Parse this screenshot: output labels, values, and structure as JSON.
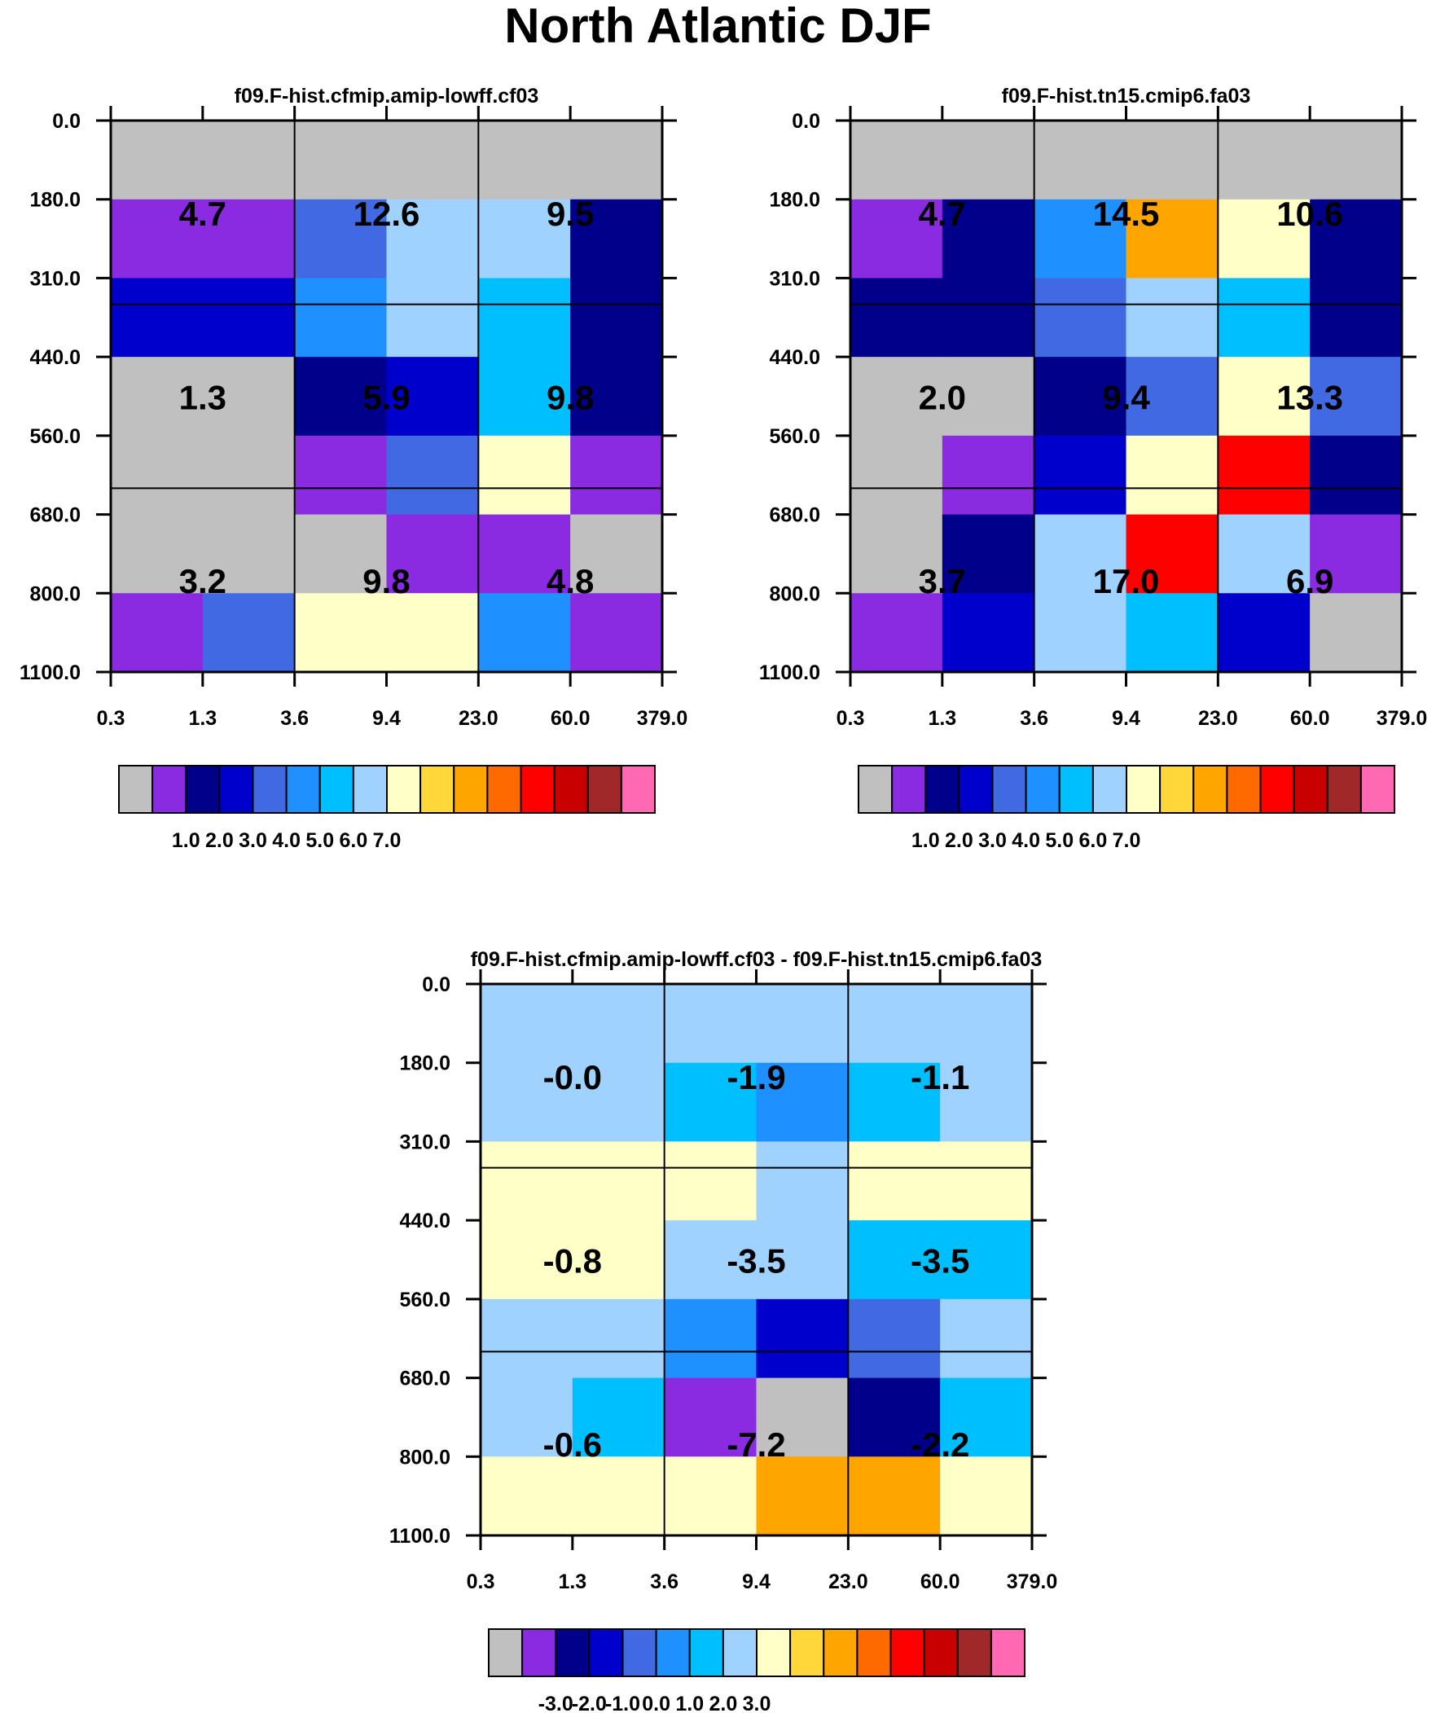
{
  "page_title": "North Atlantic DJF",
  "chart_data": [
    {
      "type": "heatmap",
      "id": "panel-left",
      "title": "f09.F-hist.cfmip.amip-lowff.cf03",
      "x_ticks": [
        "0.3",
        "1.3",
        "3.6",
        "9.4",
        "23.0",
        "60.0",
        "379.0"
      ],
      "y_ticks": [
        "0.0",
        "180.0",
        "310.0",
        "440.0",
        "560.0",
        "680.0",
        "800.0",
        "1100.0"
      ],
      "grid": [
        [
          0,
          0,
          0,
          0,
          0,
          0
        ],
        [
          1,
          1,
          4,
          7,
          7,
          2
        ],
        [
          3,
          3,
          5,
          7,
          6,
          2
        ],
        [
          0,
          0,
          2,
          3,
          6,
          2
        ],
        [
          0,
          0,
          1,
          4,
          8,
          1
        ],
        [
          0,
          0,
          0,
          1,
          1,
          0
        ],
        [
          1,
          4,
          8,
          8,
          5,
          1
        ]
      ],
      "labels": [
        "4.7",
        "12.6",
        "9.5",
        "1.3",
        "5.9",
        "9.8",
        "3.2",
        "9.8",
        "4.8"
      ],
      "colorbar": {
        "colors": [
          "#c0c0c0",
          "#8a2be2",
          "#00008b",
          "#0000cd",
          "#4169e1",
          "#1e90ff",
          "#00bfff",
          "#a0d2ff",
          "#ffffc8",
          "#ffd738",
          "#ffa500",
          "#ff6a00",
          "#ff0000",
          "#c80000",
          "#a02828",
          "#ff69b4"
        ],
        "labels": [
          "1.0",
          "2.0",
          "3.0",
          "4.0",
          "5.0",
          "6.0",
          "7.0"
        ]
      }
    },
    {
      "type": "heatmap",
      "id": "panel-right",
      "title": "f09.F-hist.tn15.cmip6.fa03",
      "x_ticks": [
        "0.3",
        "1.3",
        "3.6",
        "9.4",
        "23.0",
        "60.0",
        "379.0"
      ],
      "y_ticks": [
        "0.0",
        "180.0",
        "310.0",
        "440.0",
        "560.0",
        "680.0",
        "800.0",
        "1100.0"
      ],
      "grid": [
        [
          0,
          0,
          0,
          0,
          0,
          0
        ],
        [
          1,
          2,
          5,
          10,
          8,
          2
        ],
        [
          2,
          2,
          4,
          7,
          6,
          2
        ],
        [
          0,
          0,
          2,
          4,
          8,
          4
        ],
        [
          0,
          1,
          3,
          8,
          12,
          2
        ],
        [
          0,
          2,
          7,
          12,
          7,
          1
        ],
        [
          1,
          3,
          7,
          6,
          3,
          0
        ]
      ],
      "labels": [
        "4.7",
        "14.5",
        "10.6",
        "2.0",
        "9.4",
        "13.3",
        "3.7",
        "17.0",
        "6.9"
      ],
      "colorbar": {
        "colors": [
          "#c0c0c0",
          "#8a2be2",
          "#00008b",
          "#0000cd",
          "#4169e1",
          "#1e90ff",
          "#00bfff",
          "#a0d2ff",
          "#ffffc8",
          "#ffd738",
          "#ffa500",
          "#ff6a00",
          "#ff0000",
          "#c80000",
          "#a02828",
          "#ff69b4"
        ],
        "labels": [
          "1.0",
          "2.0",
          "3.0",
          "4.0",
          "5.0",
          "6.0",
          "7.0"
        ]
      }
    },
    {
      "type": "heatmap",
      "id": "panel-diff",
      "title": "f09.F-hist.cfmip.amip-lowff.cf03 - f09.F-hist.tn15.cmip6.fa03",
      "x_ticks": [
        "0.3",
        "1.3",
        "3.6",
        "9.4",
        "23.0",
        "60.0",
        "379.0"
      ],
      "y_ticks": [
        "0.0",
        "180.0",
        "310.0",
        "440.0",
        "560.0",
        "680.0",
        "800.0",
        "1100.0"
      ],
      "grid": [
        [
          7,
          7,
          7,
          7,
          7,
          7
        ],
        [
          7,
          7,
          6,
          5,
          6,
          7
        ],
        [
          8,
          8,
          8,
          7,
          8,
          8
        ],
        [
          8,
          8,
          7,
          7,
          6,
          6
        ],
        [
          7,
          7,
          5,
          3,
          4,
          7
        ],
        [
          7,
          6,
          1,
          0,
          2,
          6
        ],
        [
          8,
          8,
          8,
          10,
          10,
          8
        ]
      ],
      "labels": [
        "-0.0",
        "-1.9",
        "-1.1",
        "-0.8",
        "-3.5",
        "-3.5",
        "-0.6",
        "-7.2",
        "-2.2"
      ],
      "colorbar": {
        "colors": [
          "#c0c0c0",
          "#8a2be2",
          "#00008b",
          "#0000cd",
          "#4169e1",
          "#1e90ff",
          "#00bfff",
          "#a0d2ff",
          "#ffffc8",
          "#ffd738",
          "#ffa500",
          "#ff6a00",
          "#ff0000",
          "#c80000",
          "#a02828",
          "#ff69b4"
        ],
        "labels": [
          "-3.0",
          "-2.0",
          "-1.0",
          "0.0",
          "1.0",
          "2.0",
          "3.0"
        ]
      }
    }
  ]
}
